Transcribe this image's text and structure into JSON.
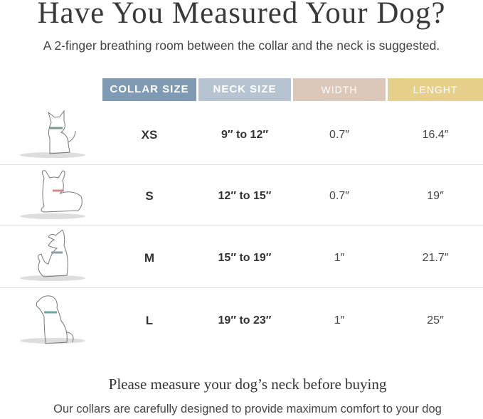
{
  "title": "Have You Measured Your Dog?",
  "subtitle": "A 2-finger breathing room between the collar and the neck is suggested.",
  "table": {
    "headers": [
      "COLLAR SIZE",
      "NECK SIZE",
      "WIDTH",
      "LENGHT"
    ],
    "header_colors": [
      "#7e9bb3",
      "#b5c4d0",
      "#dcc8b8",
      "#e6d08a"
    ],
    "rows": [
      {
        "size": "XS",
        "neck": "9″ to 12″",
        "width": "0.7″",
        "length": "16.4″",
        "dog_icon": "small-spitz-dog-icon",
        "collar_color": "#7a9a8a"
      },
      {
        "size": "S",
        "neck": "12″ to 15″",
        "width": "0.7″",
        "length": "19″",
        "dog_icon": "french-bulldog-icon",
        "collar_color": "#d08a8a"
      },
      {
        "size": "M",
        "neck": "15″ to 19″",
        "width": "1″",
        "length": "21.7″",
        "dog_icon": "border-collie-icon",
        "collar_color": "#8aa0b0"
      },
      {
        "size": "L",
        "neck": "19″ to 23″",
        "width": "1″",
        "length": "25″",
        "dog_icon": "labrador-icon",
        "collar_color": "#6aa8a8"
      }
    ]
  },
  "footer": {
    "heading": "Please measure your dog’s neck before buying",
    "text": "Our collars are carefully designed to provide maximum comfort to your dog"
  }
}
